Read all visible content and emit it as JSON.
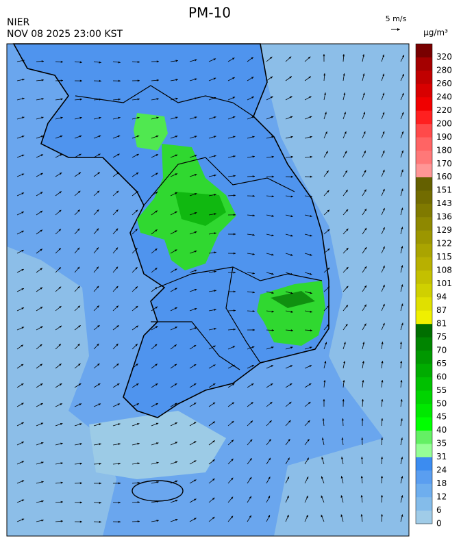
{
  "header": {
    "title": "PM-10",
    "agency": "NIER",
    "datetime": "NOV 08 2025 23:00 KST",
    "wind_scale": "5 m/s"
  },
  "legend": {
    "unit": "µg/m³",
    "levels": [
      0,
      6,
      12,
      18,
      24,
      31,
      35,
      40,
      45,
      50,
      55,
      60,
      65,
      70,
      75,
      81,
      87,
      94,
      101,
      108,
      115,
      122,
      129,
      136,
      143,
      151,
      160,
      170,
      180,
      190,
      200,
      220,
      240,
      260,
      280,
      320
    ],
    "colors": [
      "#a0cce8",
      "#84bcea",
      "#6eaeee",
      "#5a9ef0",
      "#3c8cf0",
      "#96ff96",
      "#64f064",
      "#00ff00",
      "#00e800",
      "#00d400",
      "#00c000",
      "#00ac00",
      "#009800",
      "#008400",
      "#006e00",
      "#f0f000",
      "#e0e000",
      "#d0d000",
      "#c4c000",
      "#b8b000",
      "#aaa400",
      "#9c9600",
      "#8e8800",
      "#807a00",
      "#726c00",
      "#646000",
      "#ff9696",
      "#ff7878",
      "#ff6464",
      "#ff4a4a",
      "#ff2020",
      "#f00000",
      "#d80000",
      "#c00000",
      "#a40000",
      "#780000"
    ]
  }
}
